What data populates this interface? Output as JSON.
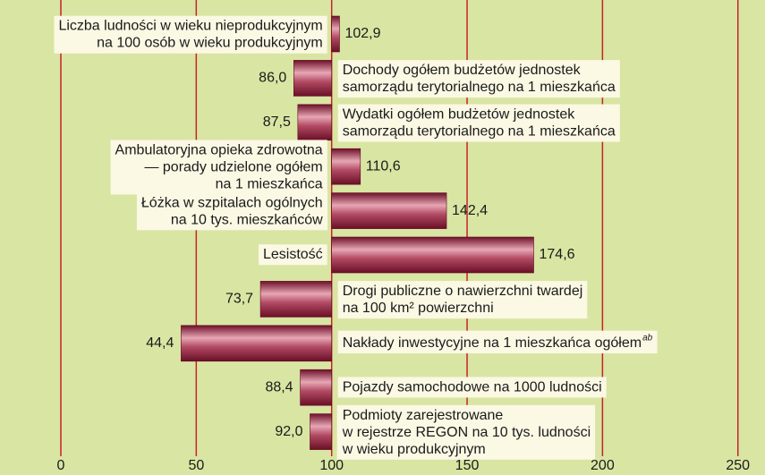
{
  "chart_data": {
    "type": "bar",
    "orientation": "horizontal",
    "baseline": 100,
    "categories": [
      [
        "Liczba ludności w wieku nieprodukcyjnym",
        "na 100 osób w wieku produkcyjnym"
      ],
      [
        "Dochody ogółem budżetów jednostek",
        "samorządu terytorialnego na 1 mieszkańca"
      ],
      [
        "Wydatki ogółem budżetów jednostek",
        "samorządu terytorialnego na 1 mieszkańca"
      ],
      [
        "Ambulatoryjna opieka zdrowotna",
        "— porady udzielone ogółem",
        "na 1 mieszkańca"
      ],
      [
        "Łóżka w szpitalach ogólnych",
        "na 10 tys. mieszkańców"
      ],
      [
        "Lesistość"
      ],
      [
        "Drogi publiczne o nawierzchni twardej",
        "na 100 km² powierzchni"
      ],
      [
        "Nakłady inwestycyjne na 1 mieszkańca ogółem"
      ],
      [
        "Pojazdy samochodowe na 1000 ludności"
      ],
      [
        "Podmioty zarejestrowane",
        "w rejestrze REGON na 10 tys. ludności",
        "w wieku produkcyjnym"
      ]
    ],
    "category_notes": {
      "7": "ab"
    },
    "values": [
      102.9,
      86.0,
      87.5,
      110.6,
      142.4,
      174.6,
      73.7,
      44.4,
      88.4,
      92.0
    ],
    "value_labels": [
      "102,9",
      "86,0",
      "87,5",
      "110,6",
      "142,4",
      "174,6",
      "73,7",
      "44,4",
      "88,4",
      "92,0"
    ],
    "color": "#8e1d3c",
    "xlim": [
      0,
      260
    ],
    "xticks": [
      0,
      50,
      100,
      150,
      200,
      250
    ],
    "grid": true
  }
}
